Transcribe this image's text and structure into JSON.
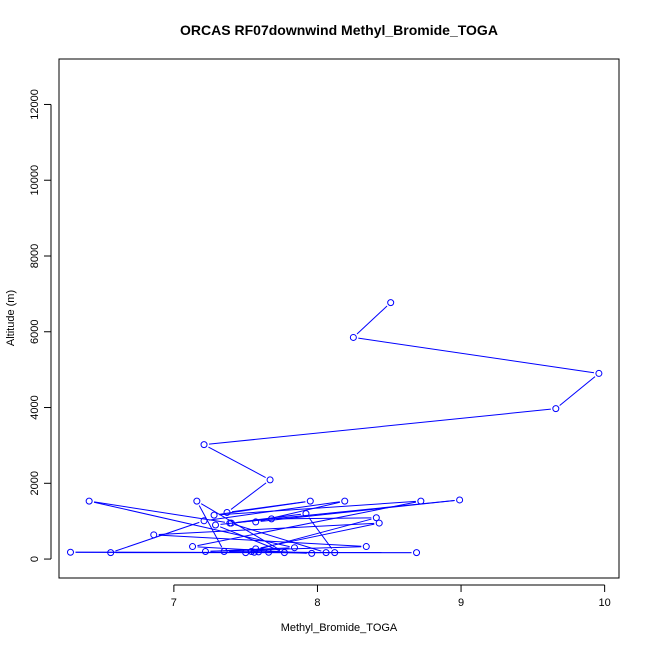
{
  "chart_data": {
    "type": "line",
    "title": "ORCAS RF07downwind Methyl_Bromide_TOGA",
    "xlabel": "Methyl_Bromide_TOGA",
    "ylabel": "Altitude (m)",
    "xlim": [
      6.2,
      10.1
    ],
    "ylim": [
      -500,
      13200
    ],
    "xticks": [
      7,
      8,
      9,
      10
    ],
    "yticks": [
      0,
      2000,
      4000,
      6000,
      8000,
      10000,
      12000
    ],
    "grid": false,
    "series": [
      {
        "color": "#0000ff",
        "marker": "open-circle",
        "points": [
          [
            8.51,
            6770
          ],
          [
            8.25,
            5850
          ],
          [
            9.96,
            4900
          ],
          [
            9.66,
            3970
          ],
          [
            7.21,
            3020
          ],
          [
            7.67,
            2090
          ],
          [
            7.37,
            1230
          ],
          [
            7.95,
            1530
          ],
          [
            7.28,
            1160
          ],
          [
            8.72,
            1530
          ],
          [
            7.13,
            330
          ],
          [
            7.96,
            150
          ],
          [
            7.54,
            200
          ],
          [
            7.57,
            270
          ],
          [
            8.43,
            950
          ],
          [
            6.86,
            640
          ],
          [
            8.34,
            330
          ],
          [
            7.22,
            200
          ],
          [
            7.84,
            300
          ],
          [
            6.41,
            1530
          ],
          [
            7.39,
            950
          ],
          [
            8.06,
            170
          ],
          [
            6.28,
            180
          ],
          [
            8.69,
            170
          ],
          [
            6.56,
            170
          ],
          [
            7.21,
            1010
          ],
          [
            8.19,
            1530
          ],
          [
            7.57,
            980
          ],
          [
            8.99,
            1560
          ],
          [
            7.4,
            950
          ],
          [
            7.92,
            1200
          ],
          [
            8.12,
            170
          ],
          [
            7.35,
            200
          ],
          [
            7.16,
            1530
          ],
          [
            7.77,
            170
          ],
          [
            7.29,
            900
          ],
          [
            7.68,
            1060
          ],
          [
            8.41,
            1090
          ],
          [
            7.5,
            170
          ],
          [
            7.59,
            190
          ],
          [
            7.56,
            180
          ],
          [
            7.66,
            180
          ]
        ]
      }
    ]
  }
}
